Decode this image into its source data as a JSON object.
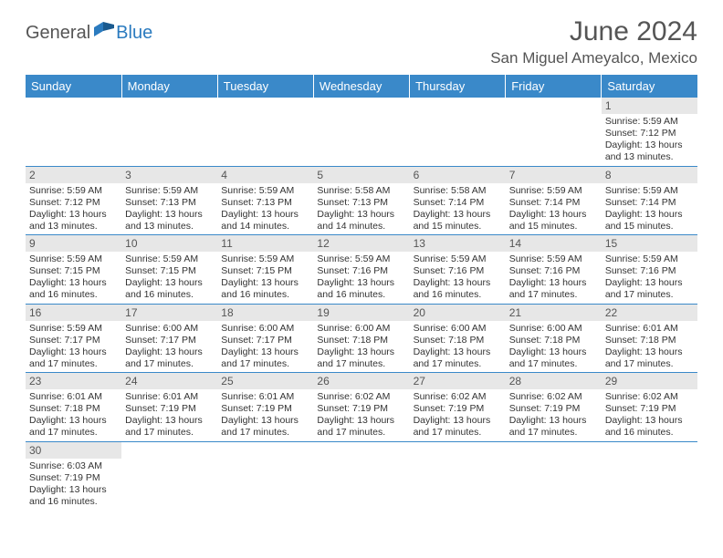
{
  "logo": {
    "text1": "General",
    "text2": "Blue"
  },
  "title": "June 2024",
  "location": "San Miguel Ameyalco, Mexico",
  "colors": {
    "header_bg": "#3a89c9",
    "daynum_bg": "#e7e7e7",
    "rule": "#3a89c9"
  },
  "weekdays": [
    "Sunday",
    "Monday",
    "Tuesday",
    "Wednesday",
    "Thursday",
    "Friday",
    "Saturday"
  ],
  "weeks": [
    [
      null,
      null,
      null,
      null,
      null,
      null,
      {
        "n": "1",
        "sr": "Sunrise: 5:59 AM",
        "ss": "Sunset: 7:12 PM",
        "dl": "Daylight: 13 hours and 13 minutes."
      }
    ],
    [
      {
        "n": "2",
        "sr": "Sunrise: 5:59 AM",
        "ss": "Sunset: 7:12 PM",
        "dl": "Daylight: 13 hours and 13 minutes."
      },
      {
        "n": "3",
        "sr": "Sunrise: 5:59 AM",
        "ss": "Sunset: 7:13 PM",
        "dl": "Daylight: 13 hours and 13 minutes."
      },
      {
        "n": "4",
        "sr": "Sunrise: 5:59 AM",
        "ss": "Sunset: 7:13 PM",
        "dl": "Daylight: 13 hours and 14 minutes."
      },
      {
        "n": "5",
        "sr": "Sunrise: 5:58 AM",
        "ss": "Sunset: 7:13 PM",
        "dl": "Daylight: 13 hours and 14 minutes."
      },
      {
        "n": "6",
        "sr": "Sunrise: 5:58 AM",
        "ss": "Sunset: 7:14 PM",
        "dl": "Daylight: 13 hours and 15 minutes."
      },
      {
        "n": "7",
        "sr": "Sunrise: 5:59 AM",
        "ss": "Sunset: 7:14 PM",
        "dl": "Daylight: 13 hours and 15 minutes."
      },
      {
        "n": "8",
        "sr": "Sunrise: 5:59 AM",
        "ss": "Sunset: 7:14 PM",
        "dl": "Daylight: 13 hours and 15 minutes."
      }
    ],
    [
      {
        "n": "9",
        "sr": "Sunrise: 5:59 AM",
        "ss": "Sunset: 7:15 PM",
        "dl": "Daylight: 13 hours and 16 minutes."
      },
      {
        "n": "10",
        "sr": "Sunrise: 5:59 AM",
        "ss": "Sunset: 7:15 PM",
        "dl": "Daylight: 13 hours and 16 minutes."
      },
      {
        "n": "11",
        "sr": "Sunrise: 5:59 AM",
        "ss": "Sunset: 7:15 PM",
        "dl": "Daylight: 13 hours and 16 minutes."
      },
      {
        "n": "12",
        "sr": "Sunrise: 5:59 AM",
        "ss": "Sunset: 7:16 PM",
        "dl": "Daylight: 13 hours and 16 minutes."
      },
      {
        "n": "13",
        "sr": "Sunrise: 5:59 AM",
        "ss": "Sunset: 7:16 PM",
        "dl": "Daylight: 13 hours and 16 minutes."
      },
      {
        "n": "14",
        "sr": "Sunrise: 5:59 AM",
        "ss": "Sunset: 7:16 PM",
        "dl": "Daylight: 13 hours and 17 minutes."
      },
      {
        "n": "15",
        "sr": "Sunrise: 5:59 AM",
        "ss": "Sunset: 7:16 PM",
        "dl": "Daylight: 13 hours and 17 minutes."
      }
    ],
    [
      {
        "n": "16",
        "sr": "Sunrise: 5:59 AM",
        "ss": "Sunset: 7:17 PM",
        "dl": "Daylight: 13 hours and 17 minutes."
      },
      {
        "n": "17",
        "sr": "Sunrise: 6:00 AM",
        "ss": "Sunset: 7:17 PM",
        "dl": "Daylight: 13 hours and 17 minutes."
      },
      {
        "n": "18",
        "sr": "Sunrise: 6:00 AM",
        "ss": "Sunset: 7:17 PM",
        "dl": "Daylight: 13 hours and 17 minutes."
      },
      {
        "n": "19",
        "sr": "Sunrise: 6:00 AM",
        "ss": "Sunset: 7:18 PM",
        "dl": "Daylight: 13 hours and 17 minutes."
      },
      {
        "n": "20",
        "sr": "Sunrise: 6:00 AM",
        "ss": "Sunset: 7:18 PM",
        "dl": "Daylight: 13 hours and 17 minutes."
      },
      {
        "n": "21",
        "sr": "Sunrise: 6:00 AM",
        "ss": "Sunset: 7:18 PM",
        "dl": "Daylight: 13 hours and 17 minutes."
      },
      {
        "n": "22",
        "sr": "Sunrise: 6:01 AM",
        "ss": "Sunset: 7:18 PM",
        "dl": "Daylight: 13 hours and 17 minutes."
      }
    ],
    [
      {
        "n": "23",
        "sr": "Sunrise: 6:01 AM",
        "ss": "Sunset: 7:18 PM",
        "dl": "Daylight: 13 hours and 17 minutes."
      },
      {
        "n": "24",
        "sr": "Sunrise: 6:01 AM",
        "ss": "Sunset: 7:19 PM",
        "dl": "Daylight: 13 hours and 17 minutes."
      },
      {
        "n": "25",
        "sr": "Sunrise: 6:01 AM",
        "ss": "Sunset: 7:19 PM",
        "dl": "Daylight: 13 hours and 17 minutes."
      },
      {
        "n": "26",
        "sr": "Sunrise: 6:02 AM",
        "ss": "Sunset: 7:19 PM",
        "dl": "Daylight: 13 hours and 17 minutes."
      },
      {
        "n": "27",
        "sr": "Sunrise: 6:02 AM",
        "ss": "Sunset: 7:19 PM",
        "dl": "Daylight: 13 hours and 17 minutes."
      },
      {
        "n": "28",
        "sr": "Sunrise: 6:02 AM",
        "ss": "Sunset: 7:19 PM",
        "dl": "Daylight: 13 hours and 17 minutes."
      },
      {
        "n": "29",
        "sr": "Sunrise: 6:02 AM",
        "ss": "Sunset: 7:19 PM",
        "dl": "Daylight: 13 hours and 16 minutes."
      }
    ],
    [
      {
        "n": "30",
        "sr": "Sunrise: 6:03 AM",
        "ss": "Sunset: 7:19 PM",
        "dl": "Daylight: 13 hours and 16 minutes."
      },
      null,
      null,
      null,
      null,
      null,
      null
    ]
  ]
}
